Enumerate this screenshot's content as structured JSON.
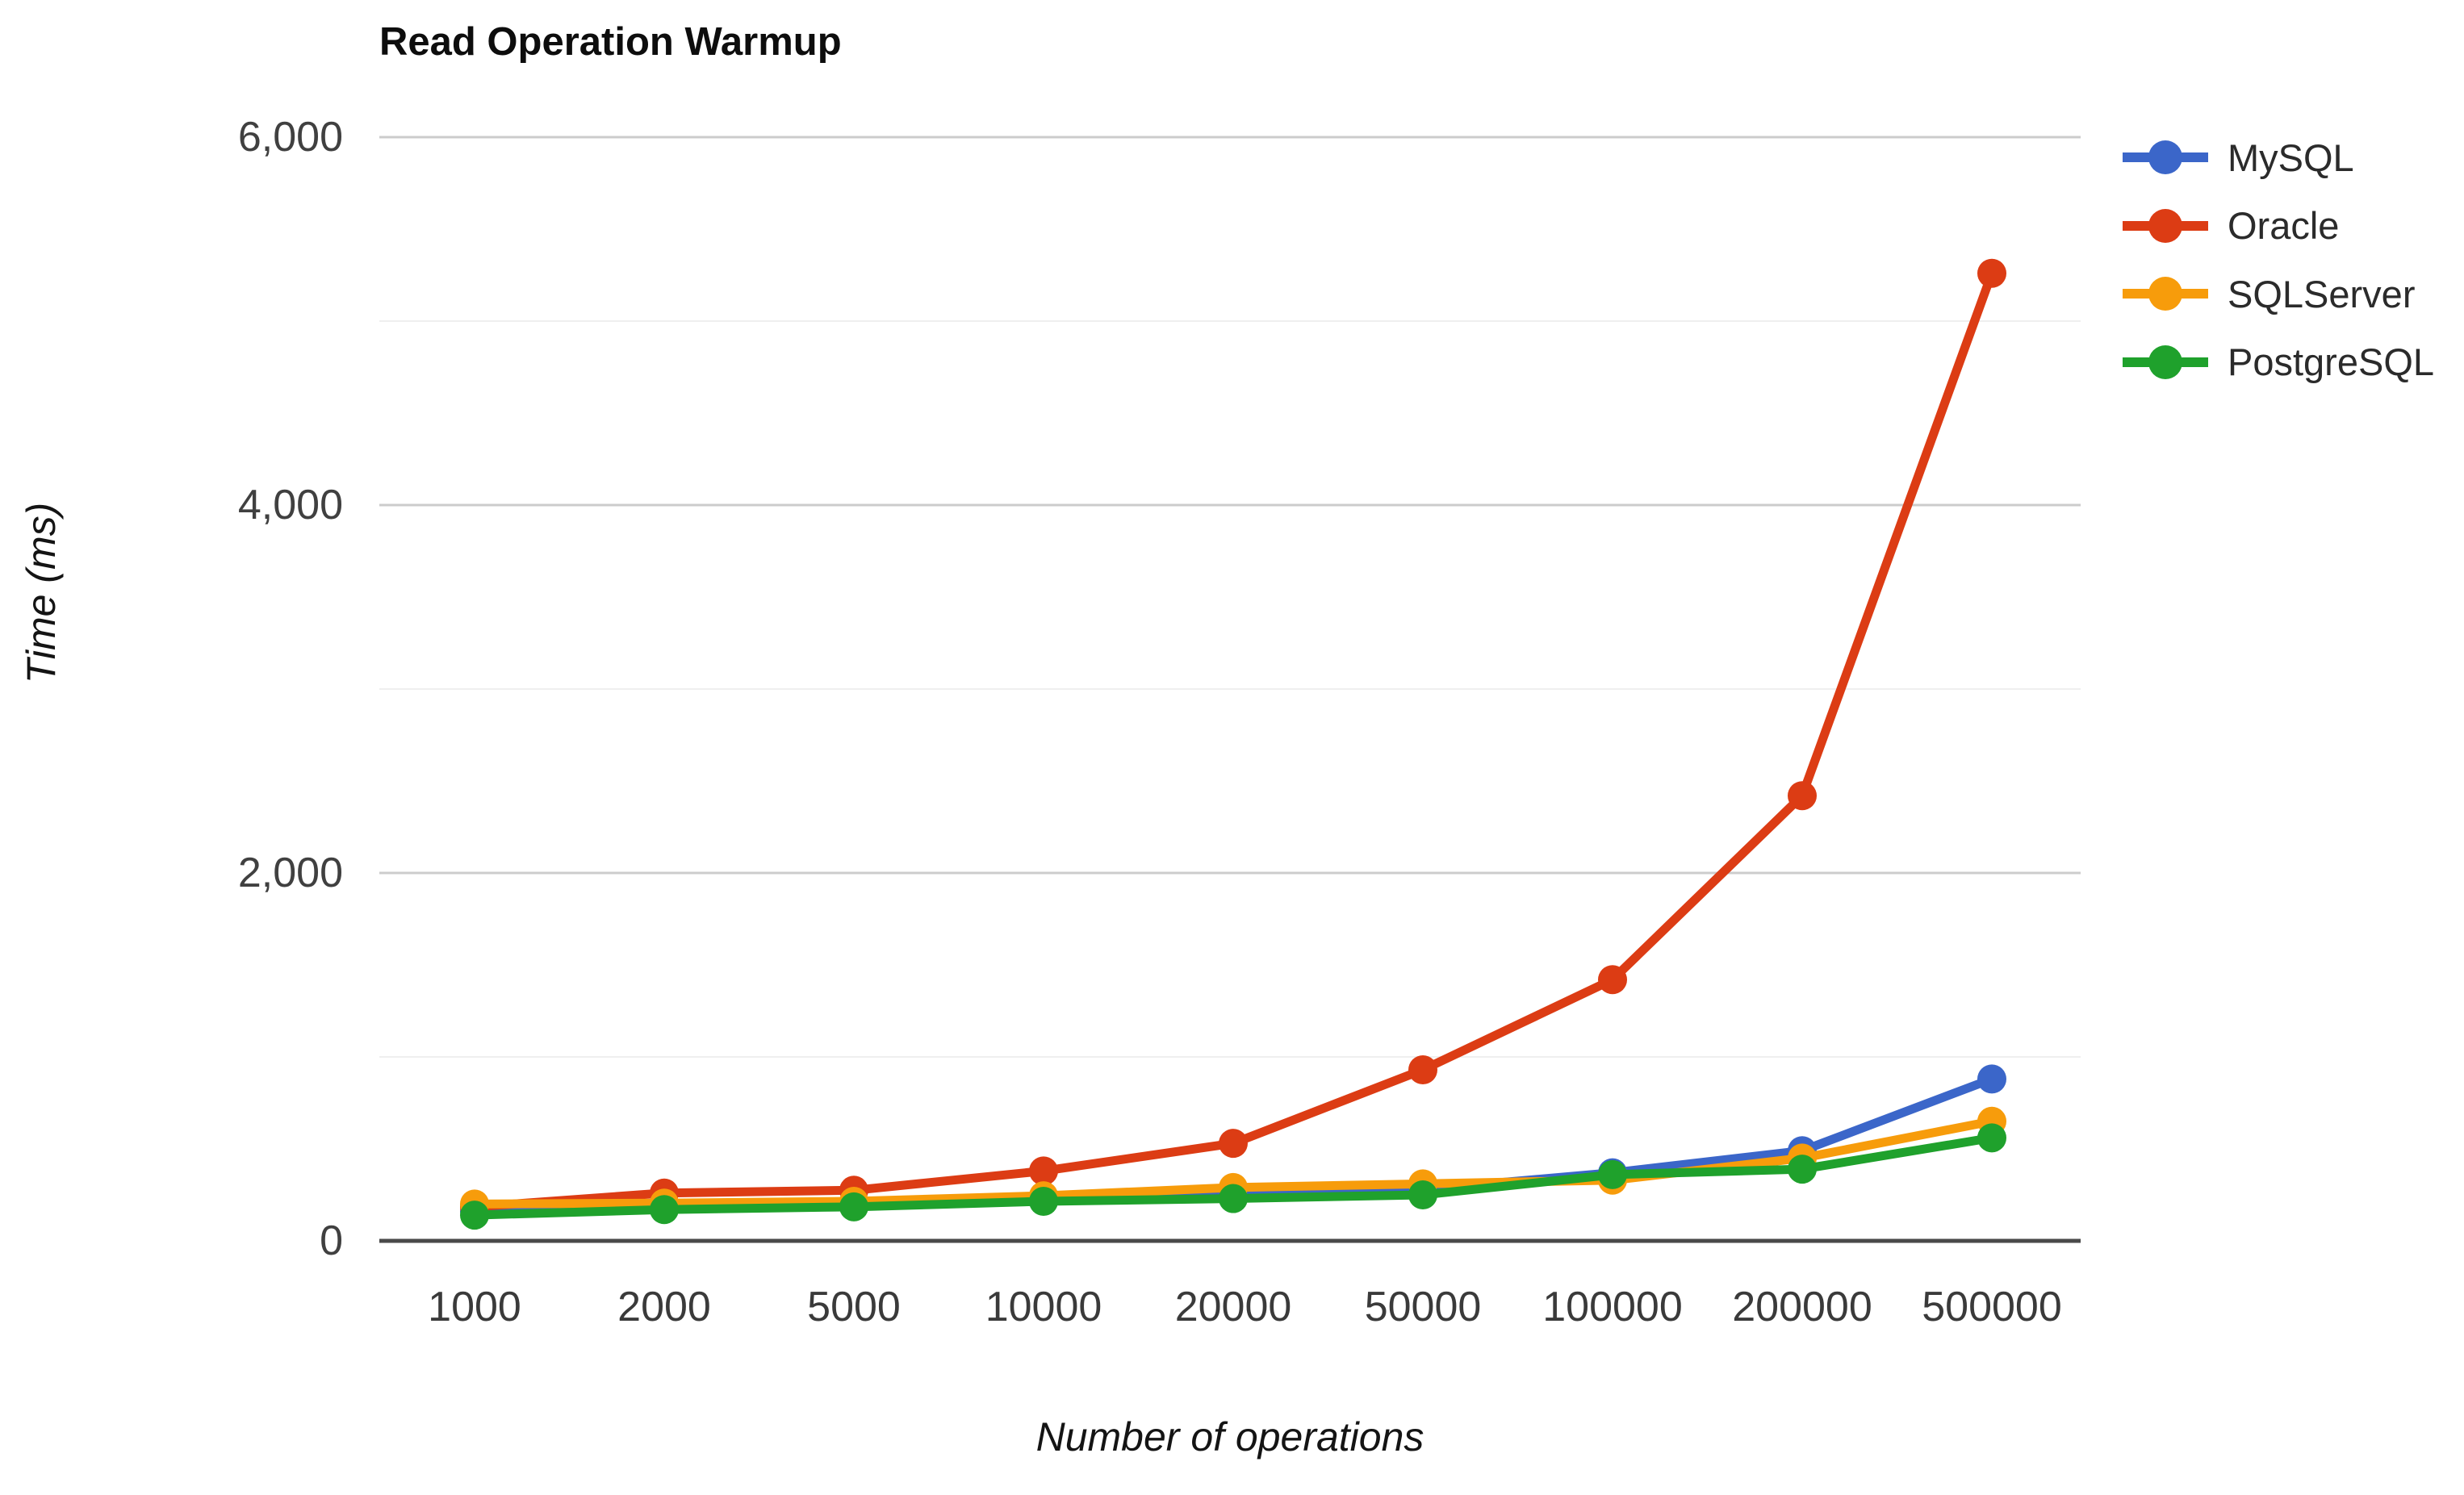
{
  "title": "Read Operation Warmup",
  "axes": {
    "x_title": "Number of operations",
    "y_title": "Time (ms)",
    "x_ticks": [
      "1000",
      "2000",
      "5000",
      "10000",
      "20000",
      "50000",
      "100000",
      "200000",
      "500000"
    ],
    "y_ticks": [
      {
        "label": "0",
        "value": 0
      },
      {
        "label": "2,000",
        "value": 2000
      },
      {
        "label": "4,000",
        "value": 4000
      },
      {
        "label": "6,000",
        "value": 6000
      }
    ]
  },
  "legend_items": [
    "MySQL",
    "Oracle",
    "SQLServer",
    "PostgreSQL"
  ],
  "style": {
    "background": "#ffffff",
    "major_gridline_color": "#cccccc",
    "minor_gridline_color": "#efefef",
    "baseline_color": "#4a4a4a",
    "tick_label_color": "#404040",
    "title_color": "#0d0d0d"
  },
  "chart_data": {
    "type": "line",
    "title": "Read Operation Warmup",
    "xlabel": "Number of operations",
    "ylabel": "Time (ms)",
    "categories": [
      1000,
      2000,
      5000,
      10000,
      20000,
      50000,
      100000,
      200000,
      500000
    ],
    "x_axis_type": "category",
    "ylim": [
      0,
      6000
    ],
    "y_major_ticks": [
      0,
      2000,
      4000,
      6000
    ],
    "y_minor_ticks": [
      1000,
      3000,
      5000
    ],
    "grid": true,
    "legend_position": "right",
    "marker": "circle",
    "series": [
      {
        "name": "MySQL",
        "color": "#3b66c9",
        "values": [
          160,
          180,
          195,
          225,
          250,
          280,
          370,
          490,
          880
        ]
      },
      {
        "name": "Oracle",
        "color": "#dc3c14",
        "values": [
          185,
          260,
          275,
          380,
          530,
          930,
          1420,
          2420,
          5260
        ]
      },
      {
        "name": "SQLServer",
        "color": "#f79c0b",
        "values": [
          200,
          205,
          215,
          245,
          290,
          310,
          330,
          450,
          650
        ]
      },
      {
        "name": "PostgreSQL",
        "color": "#1fa12c",
        "values": [
          140,
          170,
          185,
          215,
          230,
          250,
          360,
          390,
          560
        ]
      }
    ]
  }
}
